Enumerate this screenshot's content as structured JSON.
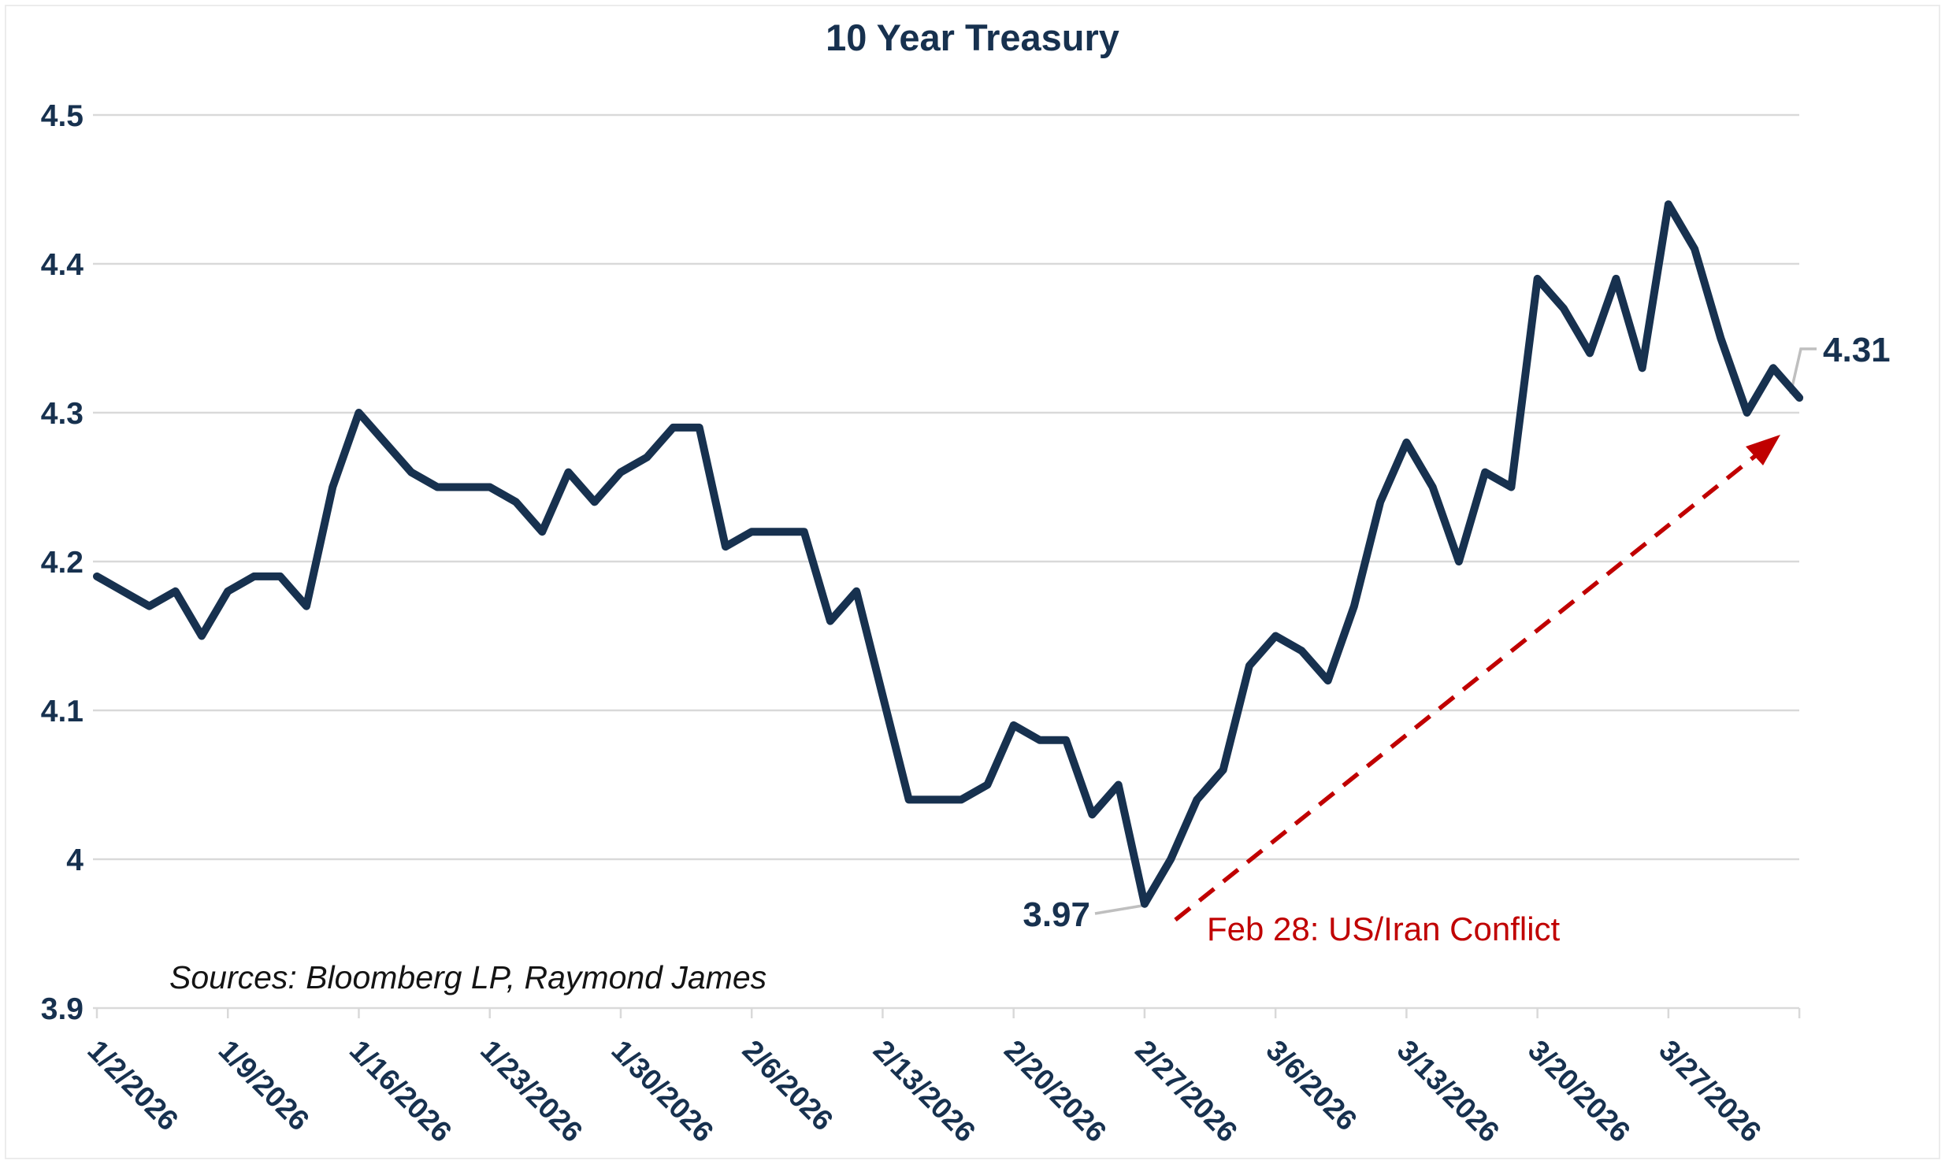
{
  "page": {
    "title": "10 Year Treasury"
  },
  "chart_data": {
    "type": "line",
    "title": "10 Year Treasury",
    "xlabel": "",
    "ylabel": "",
    "ylim": [
      3.9,
      4.5
    ],
    "y_tick_labels": [
      "4.5",
      "4.4",
      "4.3",
      "4.2",
      "4.1",
      "4",
      "3.9"
    ],
    "x_tick_labels": [
      "1/2/2026",
      "1/9/2026",
      "1/16/2026",
      "1/23/2026",
      "1/30/2026",
      "2/6/2026",
      "2/13/2026",
      "2/20/2026",
      "2/27/2026",
      "3/6/2026",
      "3/13/2026",
      "3/20/2026",
      "3/27/2026"
    ],
    "grid": "horizontal-only",
    "legend": "none",
    "series": [
      {
        "name": "10 Year Treasury Yield",
        "dates": [
          "1/2/2026",
          "1/5/2026",
          "1/6/2026",
          "1/7/2026",
          "1/8/2026",
          "1/9/2026",
          "1/12/2026",
          "1/13/2026",
          "1/14/2026",
          "1/15/2026",
          "1/16/2026",
          "1/19/2026",
          "1/20/2026",
          "1/21/2026",
          "1/22/2026",
          "1/23/2026",
          "1/26/2026",
          "1/27/2026",
          "1/28/2026",
          "1/29/2026",
          "1/30/2026",
          "2/2/2026",
          "2/3/2026",
          "2/4/2026",
          "2/5/2026",
          "2/6/2026",
          "2/9/2026",
          "2/10/2026",
          "2/11/2026",
          "2/12/2026",
          "2/13/2026",
          "2/16/2026",
          "2/17/2026",
          "2/18/2026",
          "2/19/2026",
          "2/20/2026",
          "2/23/2026",
          "2/24/2026",
          "2/25/2026",
          "2/26/2026",
          "2/27/2026",
          "3/2/2026",
          "3/3/2026",
          "3/4/2026",
          "3/5/2026",
          "3/6/2026",
          "3/9/2026",
          "3/10/2026",
          "3/11/2026",
          "3/12/2026",
          "3/13/2026",
          "3/16/2026",
          "3/17/2026",
          "3/18/2026",
          "3/19/2026",
          "3/20/2026",
          "3/23/2026",
          "3/24/2026",
          "3/25/2026",
          "3/26/2026",
          "3/27/2026",
          "3/30/2026",
          "3/31/2026",
          "4/1/2026",
          "4/2/2026",
          "4/3/2026"
        ],
        "values": [
          4.19,
          4.18,
          4.17,
          4.18,
          4.15,
          4.18,
          4.19,
          4.19,
          4.17,
          4.25,
          4.3,
          4.28,
          4.26,
          4.25,
          4.25,
          4.25,
          4.24,
          4.22,
          4.26,
          4.24,
          4.26,
          4.27,
          4.29,
          4.29,
          4.21,
          4.22,
          4.22,
          4.22,
          4.16,
          4.18,
          4.11,
          4.04,
          4.04,
          4.04,
          4.05,
          4.09,
          4.08,
          4.08,
          4.03,
          4.05,
          3.97,
          4.0,
          4.04,
          4.06,
          4.13,
          4.15,
          4.14,
          4.12,
          4.17,
          4.24,
          4.28,
          4.25,
          4.2,
          4.26,
          4.25,
          4.39,
          4.37,
          4.34,
          4.39,
          4.33,
          4.44,
          4.41,
          4.35,
          4.3,
          4.33,
          4.31
        ]
      }
    ],
    "annotations": {
      "low_point": {
        "label": "3.97",
        "value": 3.97,
        "date": "2/27/2026"
      },
      "end_point": {
        "label": "4.31",
        "value": 4.31,
        "date": "4/3/2026"
      },
      "event": {
        "label": "Feb 28: US/Iran Conflict"
      }
    },
    "source_note": "Sources: Bloomberg LP, Raymond James",
    "colors": {
      "line": "#17314F",
      "text_navy": "#17314F",
      "annotation_red": "#C00000",
      "gridline": "#D9D9D9",
      "leader_gray": "#BFBFBF",
      "background": "#FFFFFF"
    }
  }
}
